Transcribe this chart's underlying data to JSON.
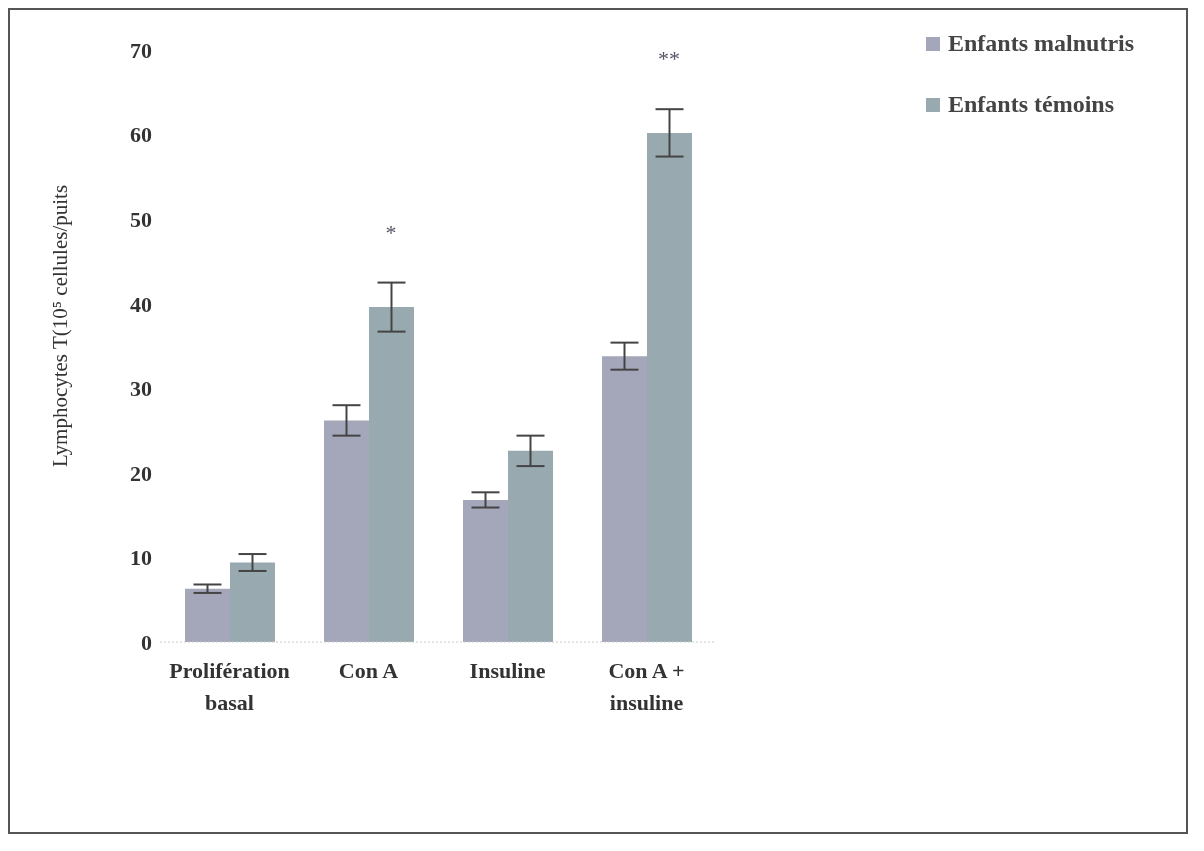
{
  "chart_data": {
    "type": "bar",
    "ylabel": "Lymphocytes T(10⁵ cellules/puits",
    "categories": [
      "Prolifération basal",
      "Con A",
      "Insuline",
      "Con A + insuline"
    ],
    "series": [
      {
        "name": "Enfants malnutris",
        "color": "#a4a6ba",
        "values": [
          6.3,
          26.2,
          16.8,
          33.8
        ],
        "errors": [
          0.5,
          1.8,
          0.9,
          1.6
        ]
      },
      {
        "name": "Enfants témoins",
        "color": "#98aab0",
        "values": [
          9.4,
          39.6,
          22.6,
          60.2
        ],
        "errors": [
          1.0,
          2.9,
          1.8,
          2.8
        ]
      }
    ],
    "ylim": [
      0,
      70
    ],
    "yticks": [
      0,
      10,
      20,
      30,
      40,
      50,
      60,
      70
    ],
    "grid": false,
    "legend": "top right",
    "annotations": [
      {
        "text": "*",
        "x": "Con A",
        "y": 39.6
      },
      {
        "text": "**",
        "x": "Con A + insuline",
        "y": 60.2
      }
    ]
  }
}
